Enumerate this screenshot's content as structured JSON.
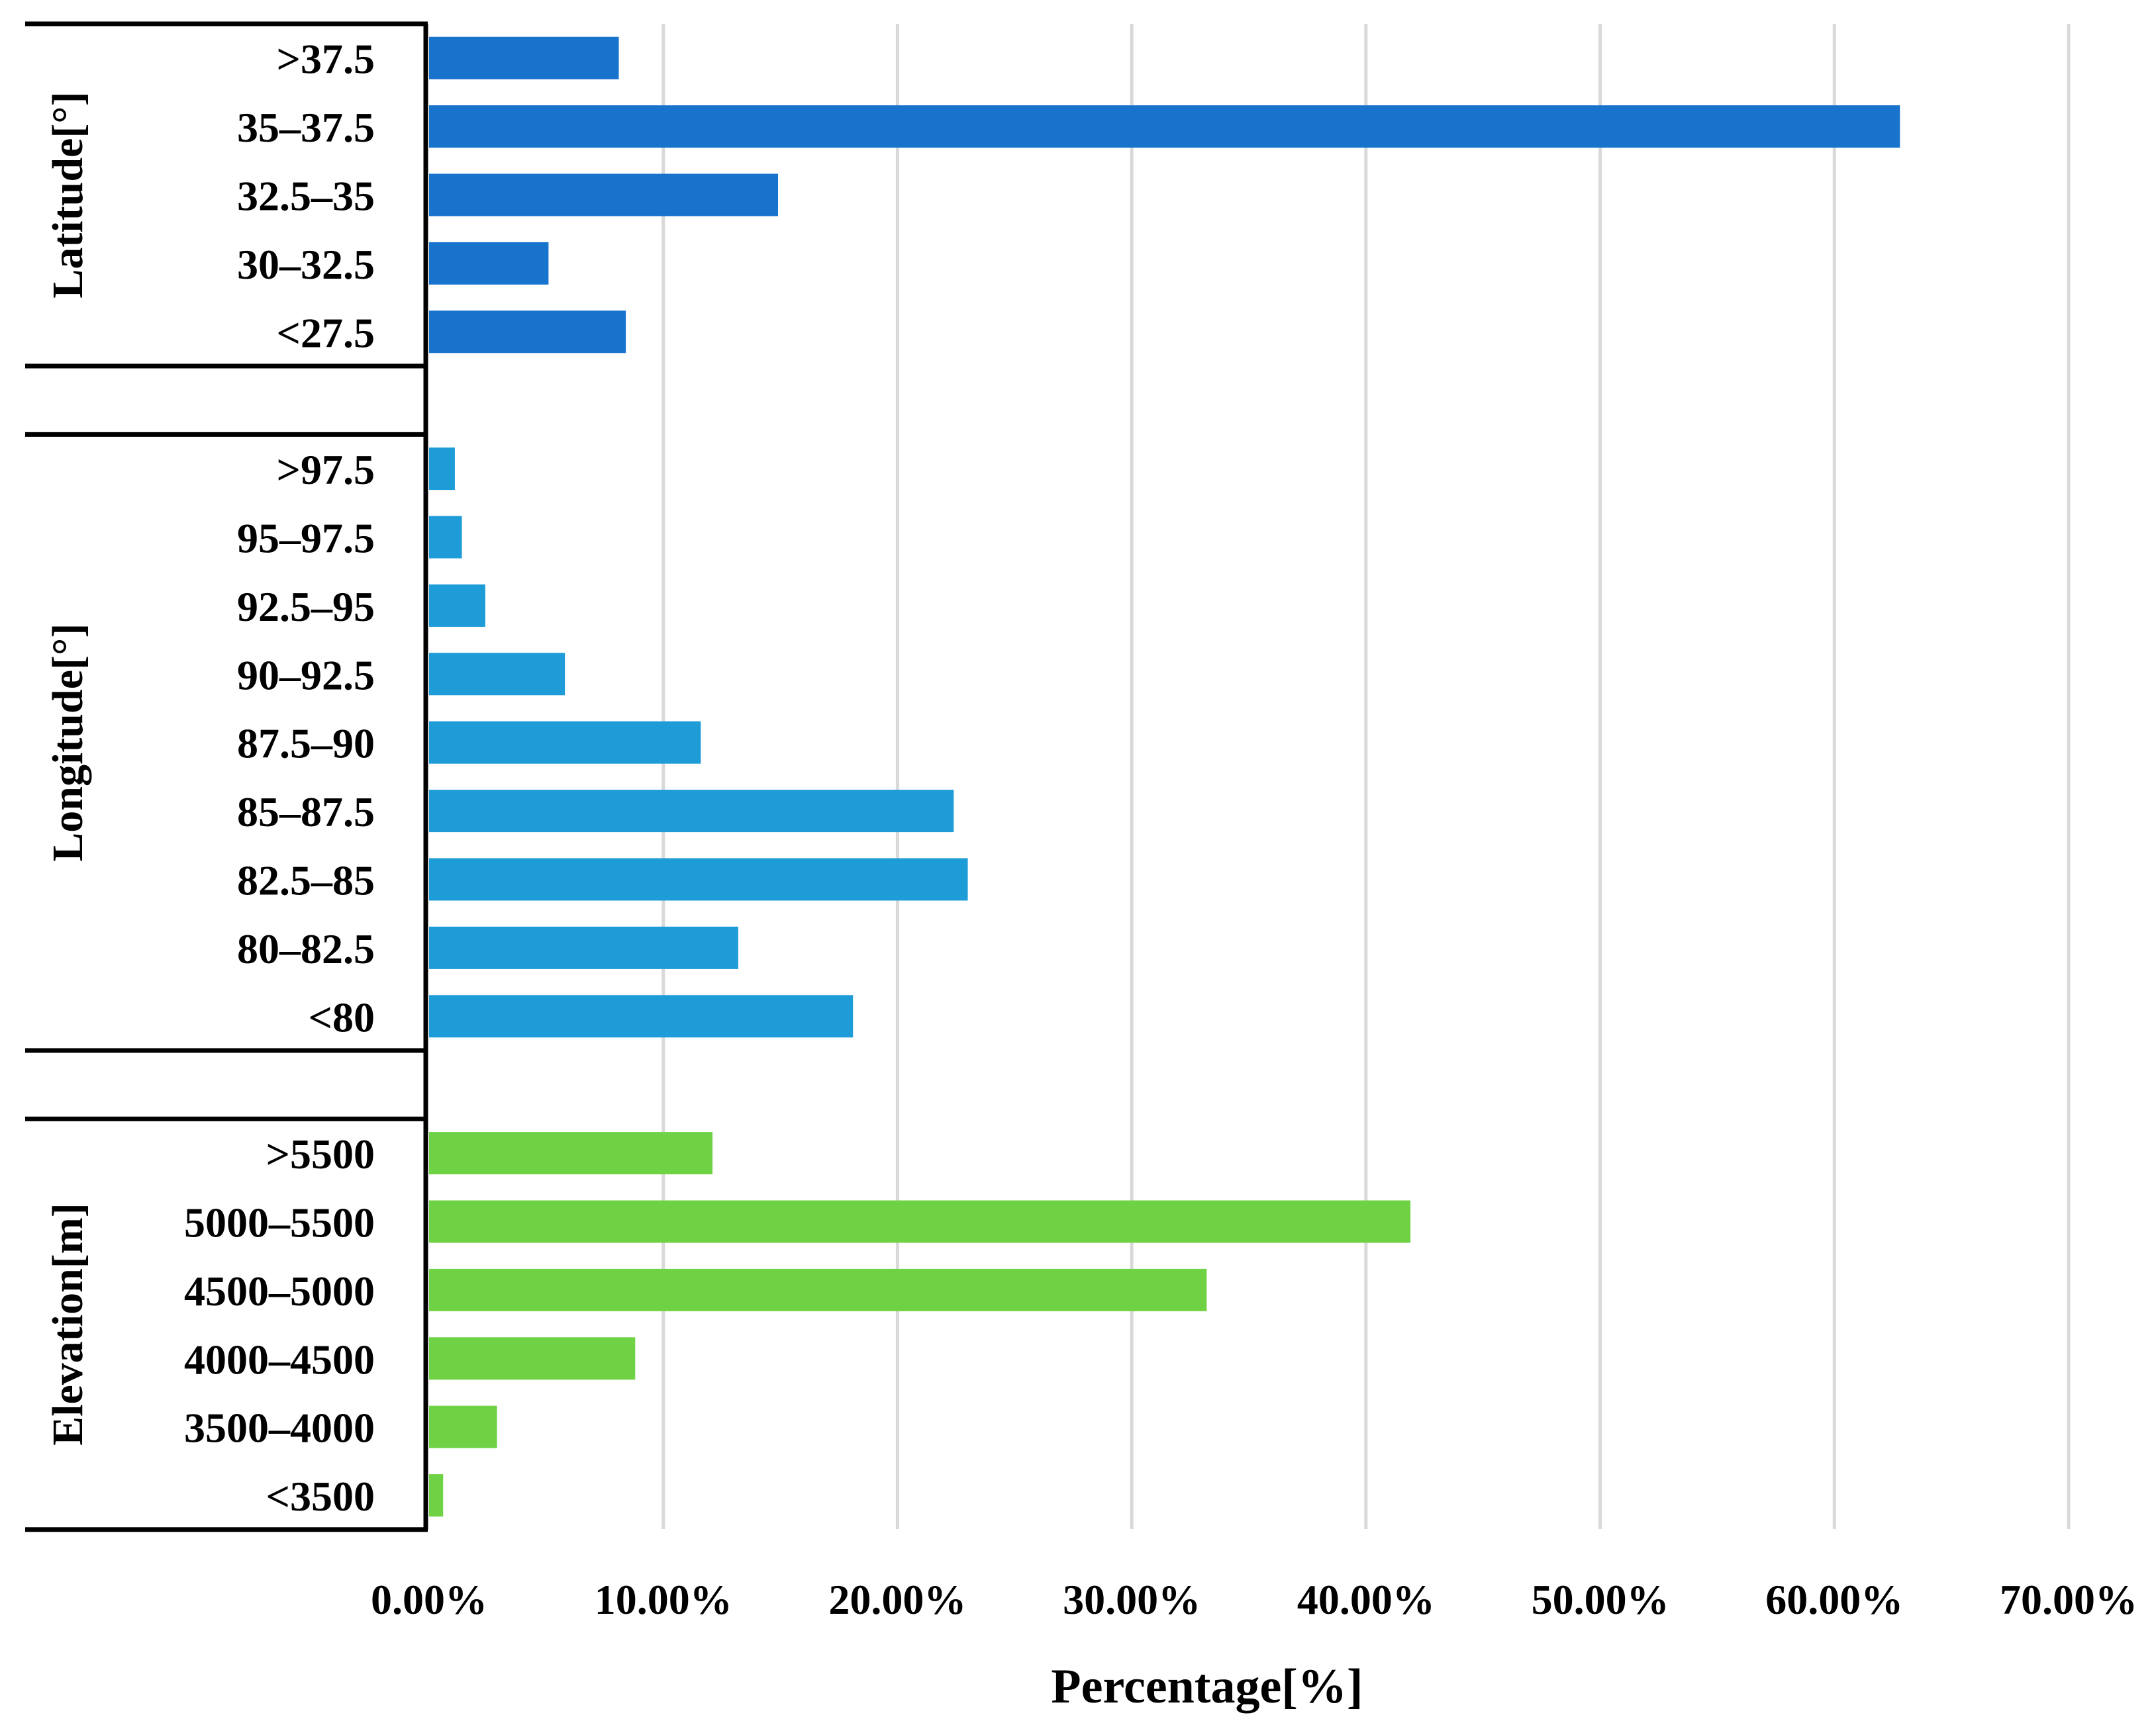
{
  "chart_data": {
    "type": "bar",
    "orientation": "horizontal",
    "title": "",
    "xlabel": "Percentage[%]",
    "ylabel": "",
    "xlim": [
      0,
      70
    ],
    "xticks": [
      "0.00%",
      "10.00%",
      "20.00%",
      "30.00%",
      "40.00%",
      "50.00%",
      "60.00%",
      "70.00%"
    ],
    "grid": true,
    "groups": [
      {
        "name": "Latitude[°]",
        "color": "#1873cc",
        "categories": [
          ">37.5",
          "35–37.5",
          "32.5–35",
          "30–32.5",
          "<27.5"
        ],
        "values": [
          8.1,
          62.8,
          14.9,
          5.1,
          8.4
        ]
      },
      {
        "name": "Longitude[°]",
        "color": "#1e9cd8",
        "categories": [
          ">97.5",
          "95–97.5",
          "92.5–95",
          "90–92.5",
          "87.5–90",
          "85–87.5",
          "82.5–85",
          "80–82.5",
          "<80"
        ],
        "values": [
          1.1,
          1.4,
          2.4,
          5.8,
          11.6,
          22.4,
          23.0,
          13.2,
          18.1
        ]
      },
      {
        "name": "Elevation[m]",
        "color": "#6fd245",
        "categories": [
          ">5500",
          "5000–5500",
          "4500–5000",
          "4000–4500",
          "3500–4000",
          "<3500"
        ],
        "values": [
          12.1,
          41.9,
          33.2,
          8.8,
          2.9,
          0.6
        ]
      }
    ]
  }
}
